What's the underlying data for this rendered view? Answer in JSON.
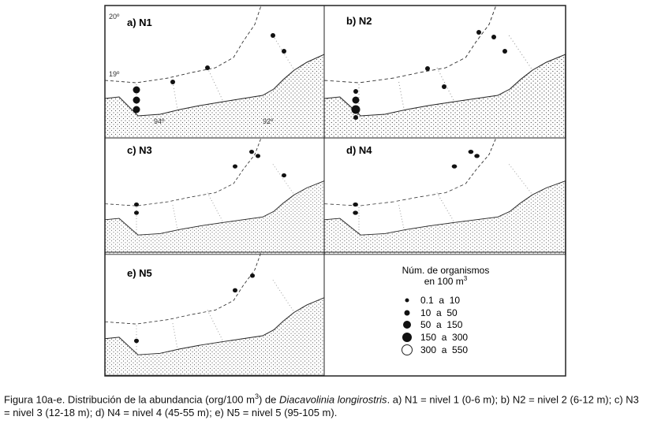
{
  "panels": [
    {
      "label": "a) N1",
      "lat_labels": [
        "20º",
        "19º"
      ],
      "lon_labels": [
        "94º",
        "92º"
      ]
    },
    {
      "label": "b) N2"
    },
    {
      "label": "c) N3"
    },
    {
      "label": "d) N4"
    },
    {
      "label": "e) N5"
    }
  ],
  "legend": {
    "title": "Núm. de organismos",
    "title2": "en 100 m",
    "title2_sup": "3",
    "items": [
      "0.1  a  10",
      "10  a  50",
      "50  a  150",
      "150  a  300",
      "300  a  550"
    ]
  },
  "caption": {
    "part1": "Figura 10a-e. Distribución de la abundancia (org/100 m",
    "sup": "3",
    "part2": ") de ",
    "italic": "Diacavolinia longirostris",
    "part3": ". a) N1 = nivel 1 (0-6 m); b) N2 = nivel 2 (6-12 m); c) N3 = nivel 3 (12-18 m); d) N4 = nivel 4 (45-55 m); e) N5 = nivel 5 (95-105 m)."
  }
}
